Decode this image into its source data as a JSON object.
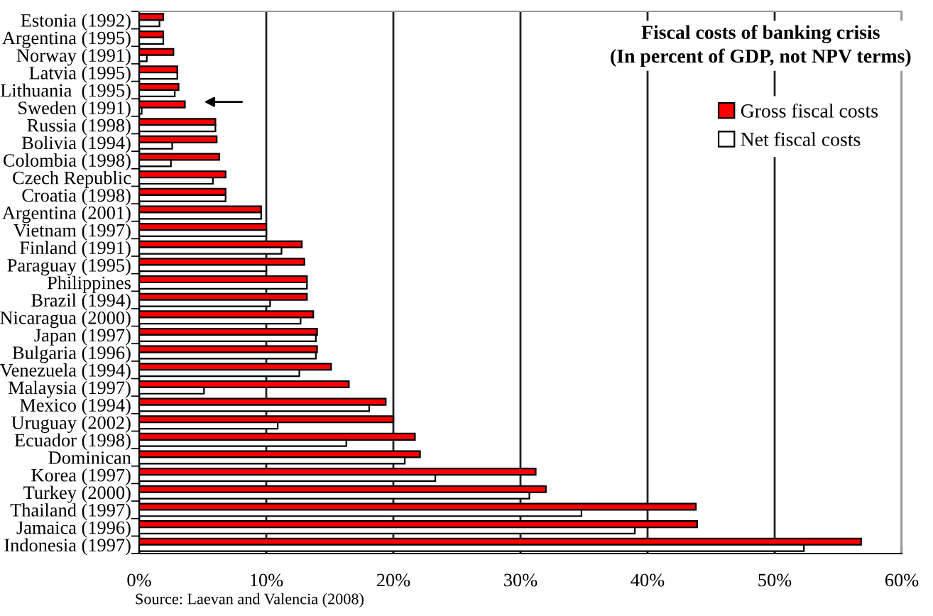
{
  "chart_data": {
    "type": "bar",
    "orientation": "horizontal",
    "title": "Fiscal costs of banking crisis\n(In percent of GDP, not NPV terms)",
    "categories": [
      "Estonia (1992)",
      "Argentina (1995)",
      "Norway (1991)",
      "Latvia (1995)",
      "Lithuania  (1995)",
      "Sweden (1991)",
      "Russia (1998)",
      "Bolivia (1994)",
      "Colombia (1998)",
      "Czech Republic",
      "Croatia (1998)",
      "Argentina (2001)",
      "Vietnam (1997)",
      "Finland (1991)",
      "Paraguay (1995)",
      "Philippines",
      "Brazil (1994)",
      "Nicaragua (2000)",
      "Japan (1997)",
      "Bulgaria (1996)",
      "Venezuela (1994)",
      "Malaysia (1997)",
      "Mexico (1994)",
      "Uruguay (2002)",
      "Ecuador (1998)",
      "Dominican",
      "Korea (1997)",
      "Turkey (2000)",
      "Thailand (1997)",
      "Jamaica (1996)",
      "Indonesia (1997)"
    ],
    "series": [
      {
        "name": "Gross fiscal costs",
        "color": "#ff0000",
        "values": [
          1.9,
          1.9,
          2.7,
          3.0,
          3.1,
          3.6,
          6.0,
          6.1,
          6.3,
          6.8,
          6.8,
          9.6,
          10.0,
          12.8,
          13.0,
          13.2,
          13.2,
          13.7,
          14.0,
          14.0,
          15.1,
          16.5,
          19.4,
          20.0,
          21.7,
          22.1,
          31.2,
          32.0,
          43.8,
          43.9,
          56.8
        ]
      },
      {
        "name": "Net fiscal costs",
        "color": "#ffffff",
        "values": [
          1.6,
          1.9,
          0.6,
          3.0,
          2.8,
          0.2,
          6.0,
          2.6,
          2.5,
          5.8,
          6.8,
          9.6,
          10.0,
          11.2,
          10.0,
          13.2,
          10.3,
          12.7,
          13.9,
          13.9,
          12.6,
          5.1,
          18.1,
          10.9,
          16.3,
          20.9,
          23.3,
          30.7,
          34.8,
          39.0,
          52.3
        ]
      }
    ],
    "xlim": [
      0,
      60
    ],
    "xticks": [
      {
        "value": 0,
        "label": "0%"
      },
      {
        "value": 10,
        "label": "10%"
      },
      {
        "value": 20,
        "label": "20%"
      },
      {
        "value": 30,
        "label": "30%"
      },
      {
        "value": 40,
        "label": "40%"
      },
      {
        "value": 50,
        "label": "50%"
      },
      {
        "value": 60,
        "label": "60%"
      }
    ],
    "grid": "x",
    "legend": "top right",
    "annotations": [
      "Source: Laevan and Valencia (2008)"
    ]
  }
}
